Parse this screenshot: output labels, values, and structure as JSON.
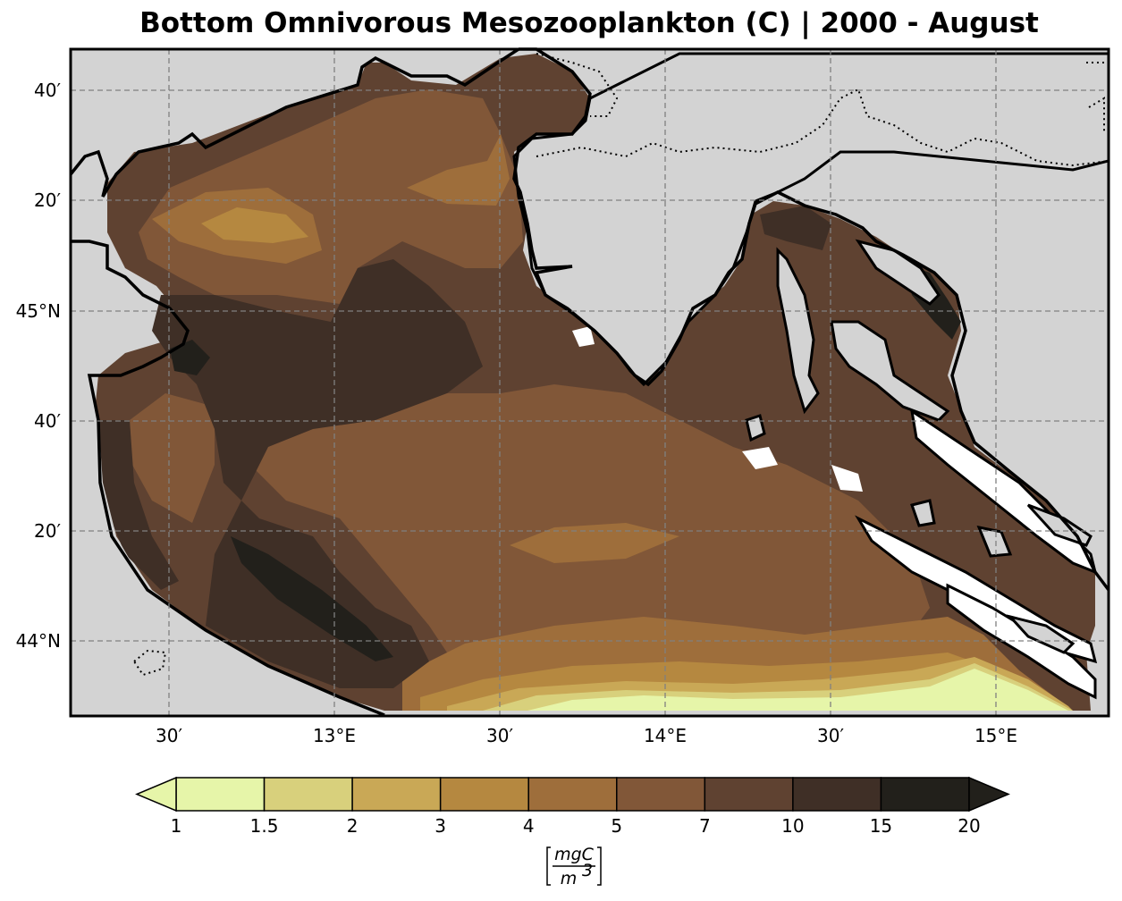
{
  "title": "Bottom Omnivorous Mesozooplankton (C) | 2000 - August",
  "map": {
    "land_color": "#d3d3d3",
    "coast_color": "#000000",
    "grid_color": "#808080",
    "lon_labels": [
      "30′",
      "13°E",
      "30′",
      "14°E",
      "30′",
      "15°E"
    ],
    "lat_labels": [
      "40′",
      "20′",
      "45°N",
      "40′",
      "20′",
      "44°N"
    ]
  },
  "colorbar": {
    "boundaries": [
      "1",
      "1.5",
      "2",
      "3",
      "4",
      "5",
      "7",
      "10",
      "15",
      "20"
    ],
    "colors": [
      "#e6f5a9",
      "#d8d07c",
      "#c9a856",
      "#b58840",
      "#9e6e3b",
      "#815738",
      "#5f4231",
      "#3f2f26",
      "#22201b"
    ],
    "under_color": "#e6f5a9",
    "over_color": "#22201b",
    "units_numerator": "mgC",
    "units_denominator": "m",
    "units_exponent": "3"
  }
}
